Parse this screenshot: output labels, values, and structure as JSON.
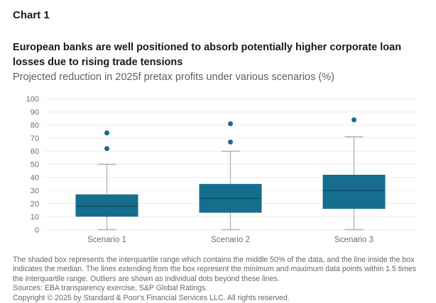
{
  "header": {
    "chart_label": "Chart 1",
    "title_lines": [
      "European banks are well positioned to absorb potentially higher corporate loan",
      "losses due to rising trade tensions"
    ],
    "subtitle": "Projected reduction in 2025f pretax profits under various scenarios (%)"
  },
  "chart_data": {
    "type": "boxplot",
    "title": "European banks are well positioned to absorb potentially higher corporate loan losses due to rising trade tensions",
    "subtitle": "Projected reduction in 2025f pretax profits under various scenarios (%)",
    "categories": [
      "Scenario 1",
      "Scenario 2",
      "Scenario 3"
    ],
    "series": [
      {
        "name": "Scenario 1",
        "whisker_low": 0,
        "q1": 10,
        "median": 18,
        "q3": 27,
        "whisker_high": 50,
        "outliers": [
          62,
          74
        ]
      },
      {
        "name": "Scenario 2",
        "whisker_low": 0,
        "q1": 13,
        "median": 24,
        "q3": 35,
        "whisker_high": 60,
        "outliers": [
          67,
          81
        ]
      },
      {
        "name": "Scenario 3",
        "whisker_low": 0,
        "q1": 16,
        "median": 30,
        "q3": 42,
        "whisker_high": 71,
        "outliers": [
          84
        ]
      }
    ],
    "ylim": [
      0,
      100
    ],
    "yticks": [
      0,
      10,
      20,
      30,
      40,
      50,
      60,
      70,
      80,
      90,
      100
    ],
    "grid": true,
    "legend": false,
    "colors": {
      "box_fill": "#156e8d",
      "median_line": "#0e4e66",
      "whisker": "#b0b0b0",
      "outlier": "#156e8d",
      "gridline": "#ececec",
      "axis_label": "#6e6e6e"
    }
  },
  "footer": {
    "note_lines": [
      "The shaded box represents the interquartile range which contains the middle 50% of the data, and the line inside the box",
      "indicates the median. The lines extending from the box represent the minimum and maximum data points within 1.5 times",
      "the interquartile range. Outliers are shown as individual dots beyond these lines."
    ],
    "sources": "Sources: EBA transparency exercise, S&P Global Ratings.",
    "copyright": "Copyright © 2025 by Standard & Poor's Financial Services LLC. All rights reserved."
  }
}
